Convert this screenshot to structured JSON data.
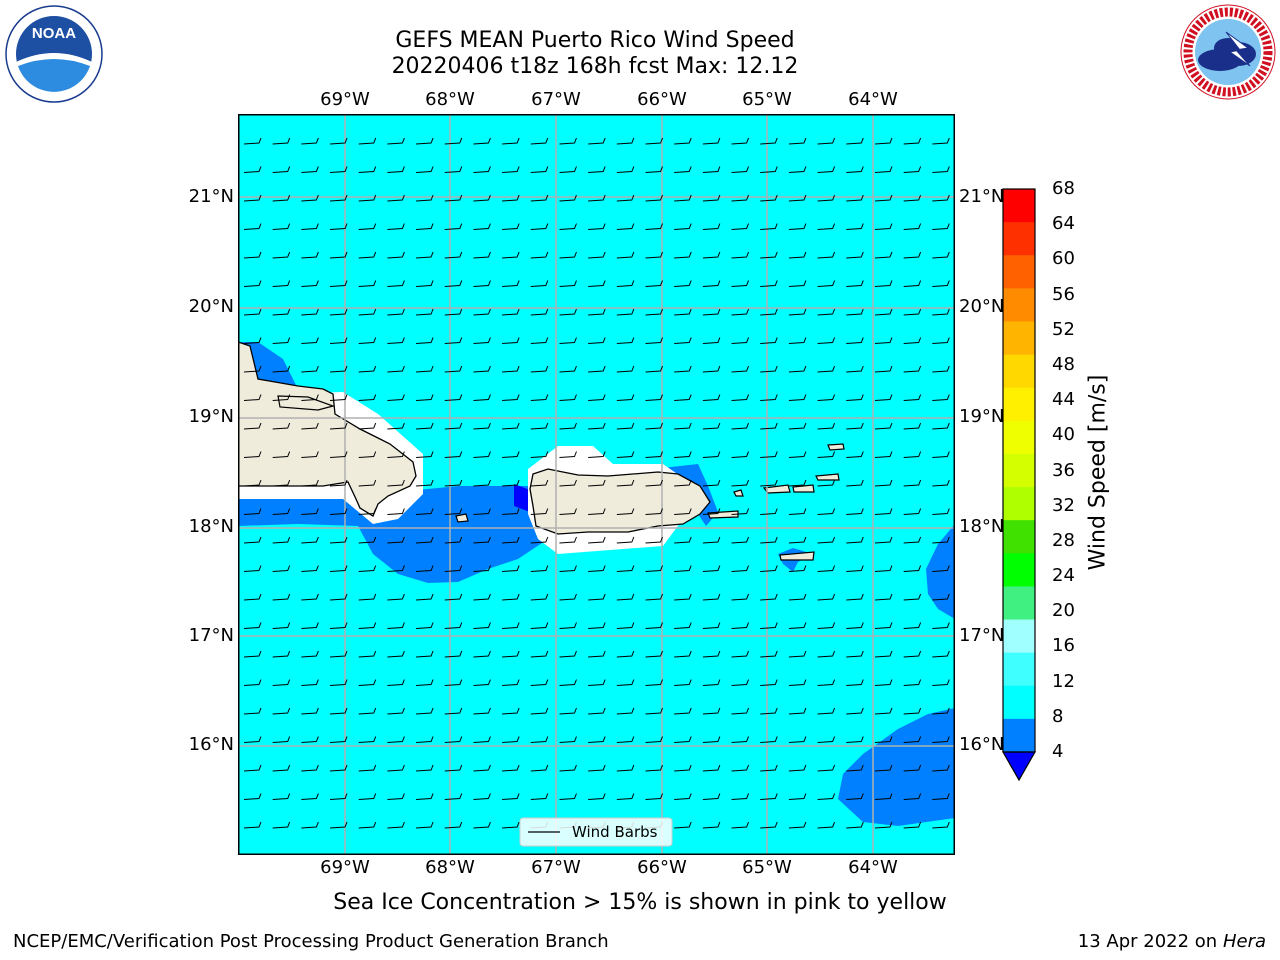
{
  "title": {
    "line1": "GEFS MEAN Puerto Rico Wind Speed",
    "line2": "20220406 t18z 168h fcst   Max: 12.12"
  },
  "logos": {
    "left": "NOAA",
    "left_ring": "NATIONAL OCEANIC AND ATMOSPHERIC ADMINISTRATION · U.S. DEPARTMENT OF COMMERCE",
    "right_ring": "NATIONAL WEATHER SERVICE"
  },
  "map": {
    "lon_labels": [
      "69°W",
      "68°W",
      "67°W",
      "66°W",
      "65°W",
      "64°W"
    ],
    "lat_labels": [
      "21°N",
      "20°N",
      "19°N",
      "18°N",
      "17°N",
      "16°N"
    ],
    "grid": true,
    "fill_color": "#00ffff",
    "legend": {
      "label": "Wind Barbs",
      "placement": "bottom-center"
    }
  },
  "colorbar": {
    "label": "Wind Speed [m/s]",
    "ticks": [
      "68",
      "64",
      "60",
      "56",
      "52",
      "48",
      "44",
      "40",
      "36",
      "32",
      "28",
      "24",
      "20",
      "16",
      "12",
      "8",
      "4"
    ],
    "colors": [
      "#ff0000",
      "#ff3000",
      "#ff6000",
      "#ff8c00",
      "#ffb400",
      "#ffd800",
      "#fff000",
      "#f0ff00",
      "#d4ff00",
      "#b0ff00",
      "#40e000",
      "#00ff00",
      "#40f080",
      "#a0ffff",
      "#40ffff",
      "#00ffff",
      "#0080ff"
    ],
    "extend_color": "#0000ff"
  },
  "note": "Sea Ice Concentration > 15% is shown in pink to yellow",
  "footer": {
    "left": "NCEP/EMC/Verification Post Processing Product Generation Branch",
    "right_prefix": "13 Apr 2022 on ",
    "right_italic": "Hera"
  }
}
